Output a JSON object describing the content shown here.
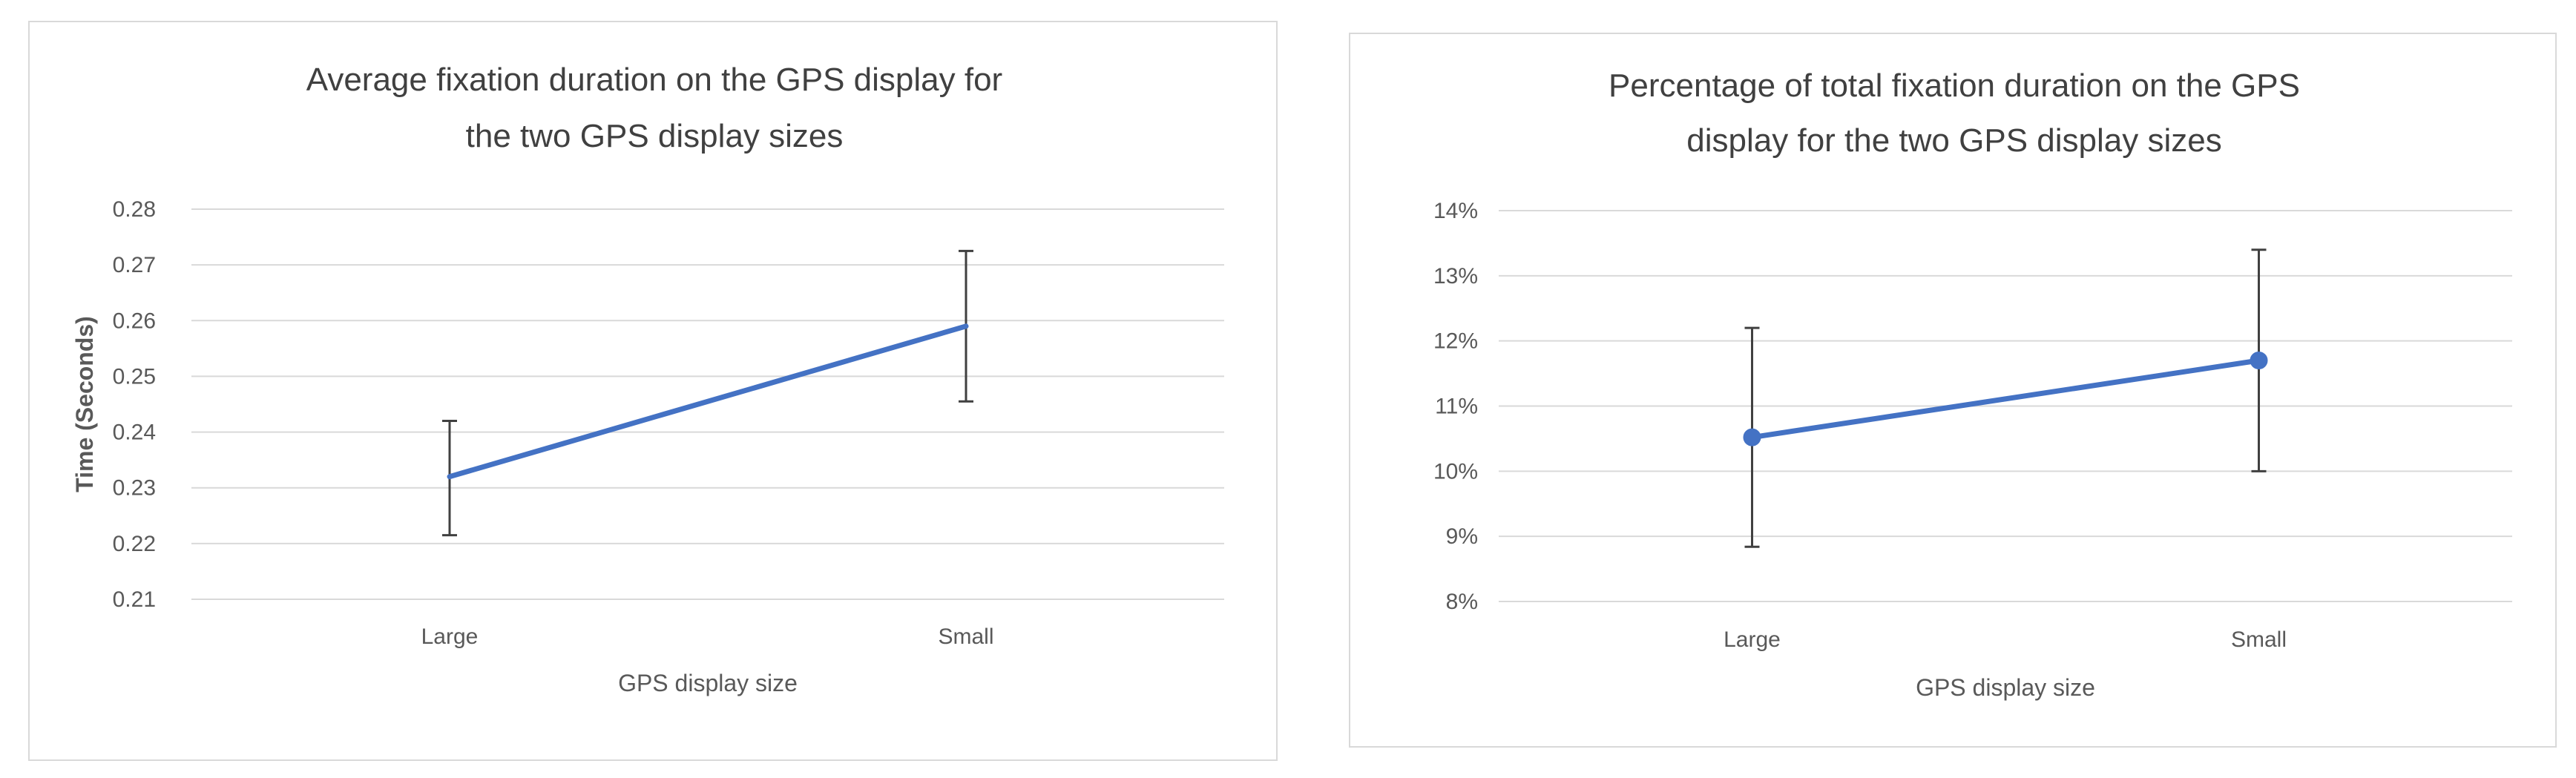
{
  "chart_data": [
    {
      "type": "line",
      "title": "Average fixation duration on the GPS display for the two GPS display sizes",
      "title_lines": [
        "Average fixation duration on the GPS display for",
        "the two GPS display sizes"
      ],
      "xlabel": "GPS display size",
      "ylabel": "Time (Seconds)",
      "categories": [
        "Large",
        "Small"
      ],
      "series": [
        {
          "values": [
            0.232,
            0.259
          ],
          "error_low": [
            0.2215,
            0.2455
          ],
          "error_high": [
            0.242,
            0.2725
          ],
          "markers": false
        }
      ],
      "ylim": [
        0.21,
        0.28
      ],
      "yticks": [
        0.21,
        0.22,
        0.23,
        0.24,
        0.25,
        0.26,
        0.27,
        0.28
      ],
      "ytick_labels": [
        "0.21",
        "0.22",
        "0.23",
        "0.24",
        "0.25",
        "0.26",
        "0.27",
        "0.28"
      ],
      "grid": true,
      "legend": "none",
      "color": "#4472c4"
    },
    {
      "type": "line",
      "title": "Percentage of total fixation duration on the GPS display for the two GPS display sizes",
      "title_lines": [
        "Percentage of total fixation duration on the GPS",
        "display for the two GPS display sizes"
      ],
      "xlabel": "GPS display size",
      "ylabel": "",
      "categories": [
        "Large",
        "Small"
      ],
      "series": [
        {
          "values": [
            0.1052,
            0.117
          ],
          "error_low": [
            0.0884,
            0.1
          ],
          "error_high": [
            0.122,
            0.134
          ],
          "markers": true
        }
      ],
      "ylim": [
        0.08,
        0.14
      ],
      "yticks": [
        0.08,
        0.09,
        0.1,
        0.11,
        0.12,
        0.13,
        0.14
      ],
      "ytick_labels": [
        "8%",
        "9%",
        "10%",
        "11%",
        "12%",
        "13%",
        "14%"
      ],
      "grid": true,
      "legend": "none",
      "color": "#4472c4"
    }
  ]
}
